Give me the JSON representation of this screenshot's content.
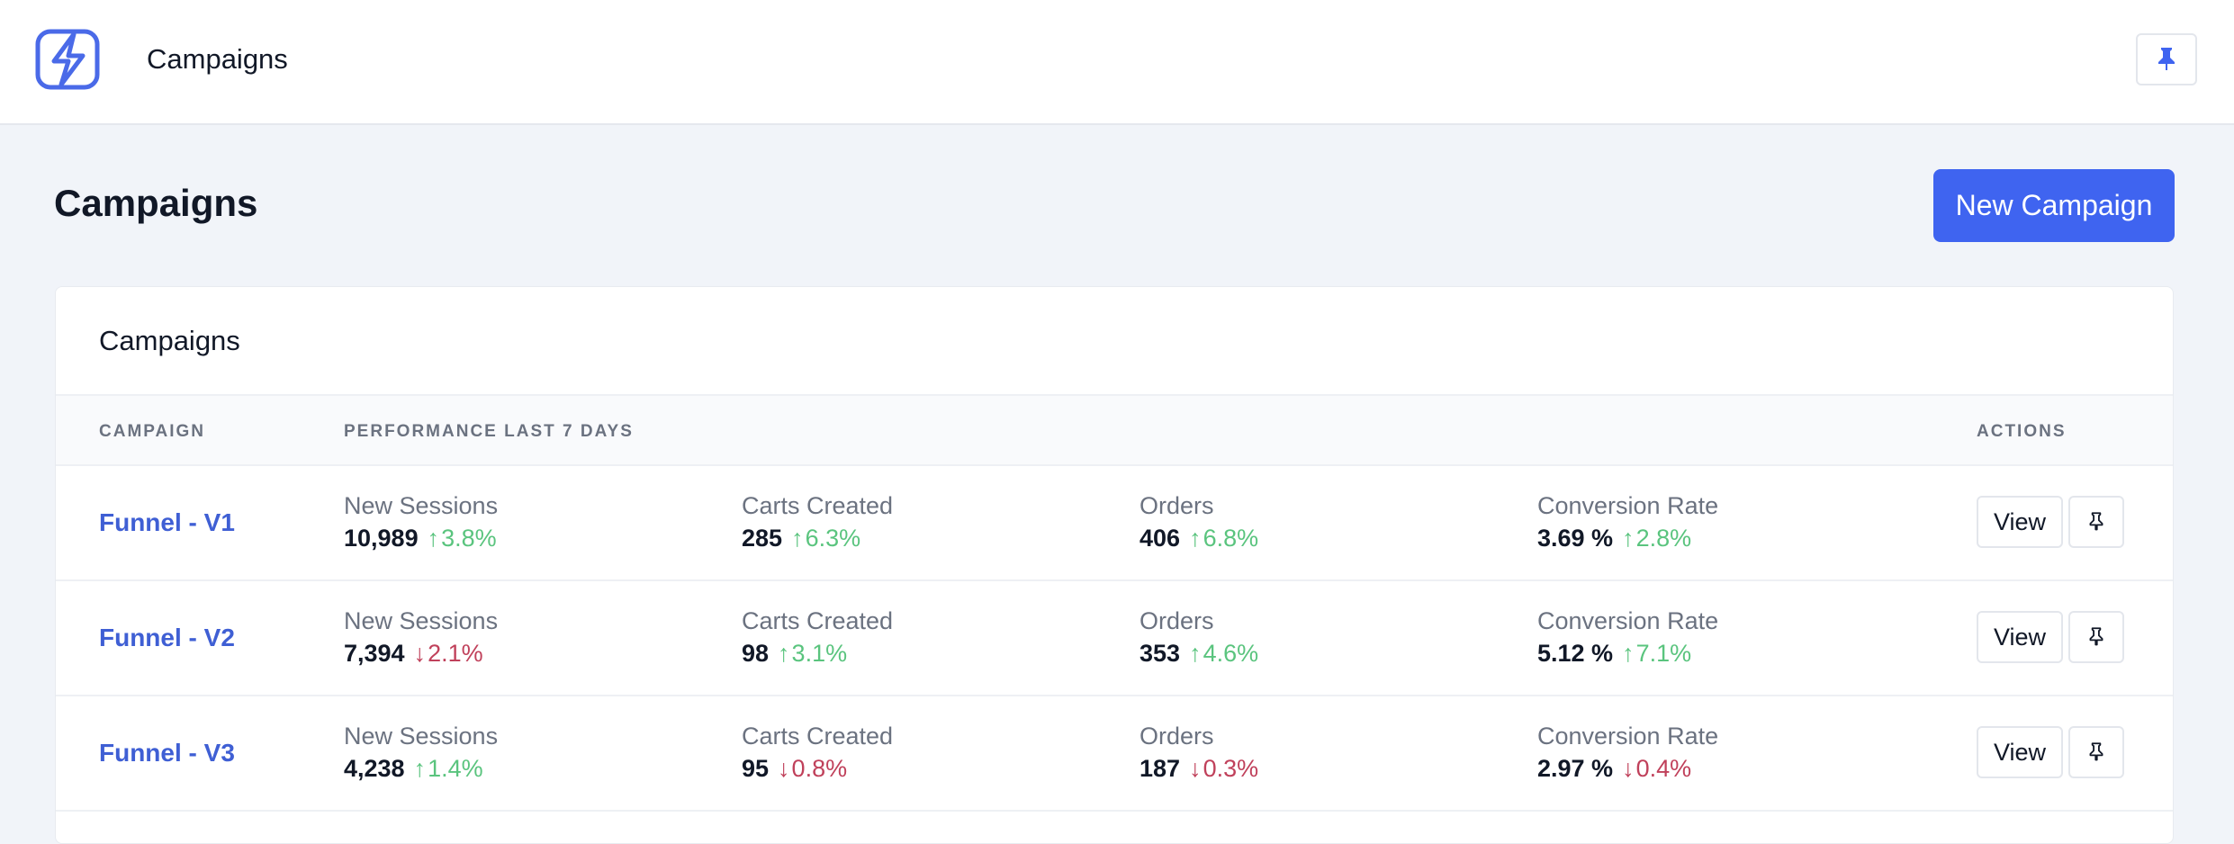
{
  "header": {
    "app_title": "Campaigns",
    "logo_icon": "bolt-s-logo-icon",
    "pin_icon": "pin-icon"
  },
  "page": {
    "title": "Campaigns",
    "new_button": "New Campaign"
  },
  "card": {
    "title": "Campaigns",
    "columns": {
      "campaign": "CAMPAIGN",
      "performance": "PERFORMANCE LAST 7 DAYS",
      "actions": "ACTIONS"
    },
    "rows": [
      {
        "name": "Funnel - V1",
        "metrics": [
          {
            "label": "New Sessions",
            "value": "10,989",
            "delta": "3.8%",
            "dir": "up"
          },
          {
            "label": "Carts Created",
            "value": "285",
            "delta": "6.3%",
            "dir": "up"
          },
          {
            "label": "Orders",
            "value": "406",
            "delta": "6.8%",
            "dir": "up"
          },
          {
            "label": "Conversion Rate",
            "value": "3.69 %",
            "delta": "2.8%",
            "dir": "up"
          }
        ],
        "view_label": "View"
      },
      {
        "name": "Funnel - V2",
        "metrics": [
          {
            "label": "New Sessions",
            "value": "7,394",
            "delta": "2.1%",
            "dir": "down"
          },
          {
            "label": "Carts Created",
            "value": "98",
            "delta": "3.1%",
            "dir": "up"
          },
          {
            "label": "Orders",
            "value": "353",
            "delta": "4.6%",
            "dir": "up"
          },
          {
            "label": "Conversion Rate",
            "value": "5.12 %",
            "delta": "7.1%",
            "dir": "up"
          }
        ],
        "view_label": "View"
      },
      {
        "name": "Funnel - V3",
        "metrics": [
          {
            "label": "New Sessions",
            "value": "4,238",
            "delta": "1.4%",
            "dir": "up"
          },
          {
            "label": "Carts Created",
            "value": "95",
            "delta": "0.8%",
            "dir": "down"
          },
          {
            "label": "Orders",
            "value": "187",
            "delta": "0.3%",
            "dir": "down"
          },
          {
            "label": "Conversion Rate",
            "value": "2.97 %",
            "delta": "0.4%",
            "dir": "down"
          }
        ],
        "view_label": "View"
      }
    ]
  },
  "colors": {
    "accent": "#3f64f0",
    "link": "#3f5fd4",
    "up": "#5ac47e",
    "down": "#c0415b"
  }
}
